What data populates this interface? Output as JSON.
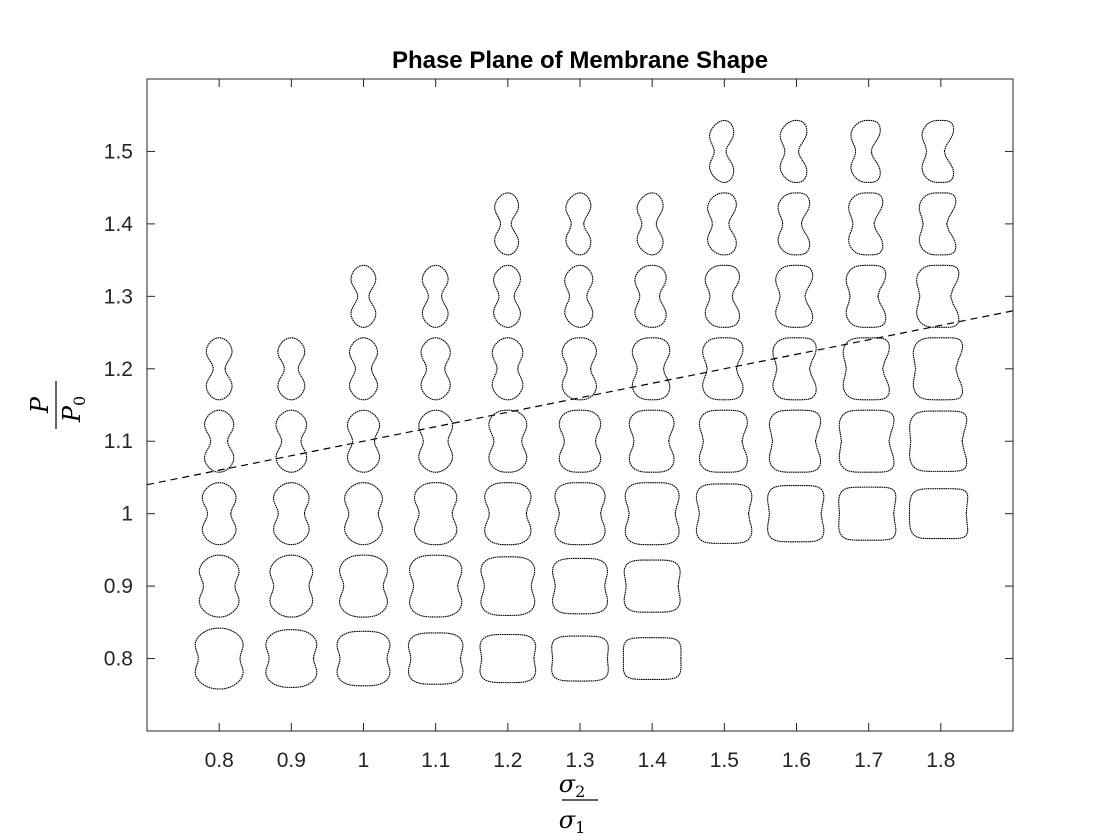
{
  "chart_data": {
    "type": "scatter",
    "title": "Phase Plane of Membrane Shape",
    "xlabel": {
      "numerator": "σ",
      "numerator_sub": "2",
      "denominator": "σ",
      "denominator_sub": "1"
    },
    "ylabel": {
      "numerator": "P",
      "denominator": "P",
      "denominator_sub": "0"
    },
    "xlim": [
      0.7,
      1.9
    ],
    "ylim": [
      0.7,
      1.6
    ],
    "xticks": [
      "0.8",
      "0.9",
      "1",
      "1.1",
      "1.2",
      "1.3",
      "1.4",
      "1.5",
      "1.6",
      "1.7",
      "1.8"
    ],
    "yticks": [
      "0.8",
      "0.9",
      "1",
      "1.1",
      "1.2",
      "1.3",
      "1.4",
      "1.5"
    ],
    "grid": false,
    "marker": "membrane-shape-outline",
    "points": [
      {
        "x": 0.8,
        "y": 0.8
      },
      {
        "x": 0.9,
        "y": 0.8
      },
      {
        "x": 1.0,
        "y": 0.8
      },
      {
        "x": 1.1,
        "y": 0.8
      },
      {
        "x": 1.2,
        "y": 0.8
      },
      {
        "x": 1.3,
        "y": 0.8
      },
      {
        "x": 1.4,
        "y": 0.8
      },
      {
        "x": 0.8,
        "y": 0.9
      },
      {
        "x": 0.9,
        "y": 0.9
      },
      {
        "x": 1.0,
        "y": 0.9
      },
      {
        "x": 1.1,
        "y": 0.9
      },
      {
        "x": 1.2,
        "y": 0.9
      },
      {
        "x": 1.3,
        "y": 0.9
      },
      {
        "x": 1.4,
        "y": 0.9
      },
      {
        "x": 0.8,
        "y": 1.0
      },
      {
        "x": 0.9,
        "y": 1.0
      },
      {
        "x": 1.0,
        "y": 1.0
      },
      {
        "x": 1.1,
        "y": 1.0
      },
      {
        "x": 1.2,
        "y": 1.0
      },
      {
        "x": 1.3,
        "y": 1.0
      },
      {
        "x": 1.4,
        "y": 1.0
      },
      {
        "x": 1.5,
        "y": 1.0
      },
      {
        "x": 1.6,
        "y": 1.0
      },
      {
        "x": 1.7,
        "y": 1.0
      },
      {
        "x": 1.8,
        "y": 1.0
      },
      {
        "x": 0.8,
        "y": 1.1
      },
      {
        "x": 0.9,
        "y": 1.1
      },
      {
        "x": 1.0,
        "y": 1.1
      },
      {
        "x": 1.1,
        "y": 1.1
      },
      {
        "x": 1.2,
        "y": 1.1
      },
      {
        "x": 1.3,
        "y": 1.1
      },
      {
        "x": 1.4,
        "y": 1.1
      },
      {
        "x": 1.5,
        "y": 1.1
      },
      {
        "x": 1.6,
        "y": 1.1
      },
      {
        "x": 1.7,
        "y": 1.1
      },
      {
        "x": 1.8,
        "y": 1.1
      },
      {
        "x": 0.8,
        "y": 1.2
      },
      {
        "x": 0.9,
        "y": 1.2
      },
      {
        "x": 1.0,
        "y": 1.2
      },
      {
        "x": 1.1,
        "y": 1.2
      },
      {
        "x": 1.2,
        "y": 1.2
      },
      {
        "x": 1.3,
        "y": 1.2
      },
      {
        "x": 1.4,
        "y": 1.2
      },
      {
        "x": 1.5,
        "y": 1.2
      },
      {
        "x": 1.6,
        "y": 1.2
      },
      {
        "x": 1.7,
        "y": 1.2
      },
      {
        "x": 1.8,
        "y": 1.2
      },
      {
        "x": 1.0,
        "y": 1.3
      },
      {
        "x": 1.1,
        "y": 1.3
      },
      {
        "x": 1.2,
        "y": 1.3
      },
      {
        "x": 1.3,
        "y": 1.3
      },
      {
        "x": 1.4,
        "y": 1.3
      },
      {
        "x": 1.5,
        "y": 1.3
      },
      {
        "x": 1.6,
        "y": 1.3
      },
      {
        "x": 1.7,
        "y": 1.3
      },
      {
        "x": 1.8,
        "y": 1.3
      },
      {
        "x": 1.2,
        "y": 1.4
      },
      {
        "x": 1.3,
        "y": 1.4
      },
      {
        "x": 1.4,
        "y": 1.4
      },
      {
        "x": 1.5,
        "y": 1.4
      },
      {
        "x": 1.6,
        "y": 1.4
      },
      {
        "x": 1.7,
        "y": 1.4
      },
      {
        "x": 1.8,
        "y": 1.4
      },
      {
        "x": 1.5,
        "y": 1.5
      },
      {
        "x": 1.6,
        "y": 1.5
      },
      {
        "x": 1.7,
        "y": 1.5
      },
      {
        "x": 1.8,
        "y": 1.5
      }
    ],
    "reference_line": {
      "style": "dashed",
      "x": [
        0.7,
        1.9
      ],
      "y": [
        1.04,
        1.28
      ]
    }
  }
}
